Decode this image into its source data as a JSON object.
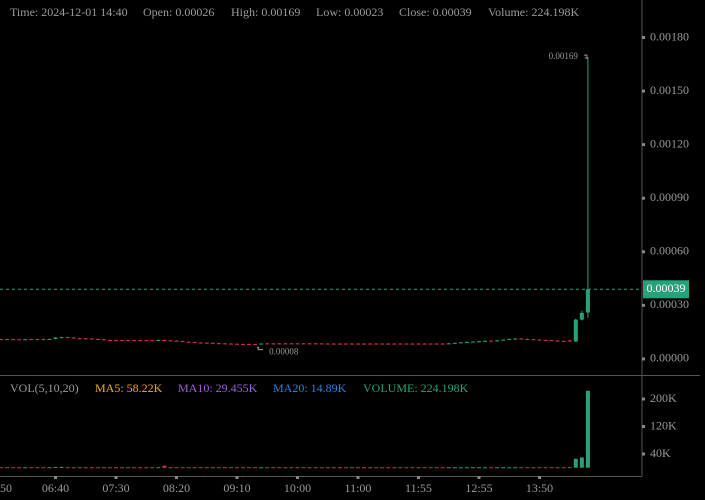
{
  "chart_data": {
    "type": "candlestick",
    "info": [
      {
        "label": "Time:",
        "value": "2024-12-01 14:40"
      },
      {
        "label": "Open:",
        "value": "0.00026"
      },
      {
        "label": "High:",
        "value": "0.00169"
      },
      {
        "label": "Low:",
        "value": "0.00023"
      },
      {
        "label": "Close:",
        "value": "0.00039"
      },
      {
        "label": "Volume:",
        "value": "224.198K"
      }
    ],
    "up_color": "#26a17b",
    "down_color": "#d9304f",
    "ylim": [
      -9e-05,
      0.00201
    ],
    "yticks": [
      {
        "value": 0,
        "label": "0.00000"
      },
      {
        "value": 0.0003,
        "label": "0.00030"
      },
      {
        "value": 0.0006,
        "label": "0.00060"
      },
      {
        "value": 0.0009,
        "label": "0.00090"
      },
      {
        "value": 0.0012,
        "label": "0.00120"
      },
      {
        "value": 0.0015,
        "label": "0.00150"
      },
      {
        "value": 0.0018,
        "label": "0.00180"
      }
    ],
    "last_price": 0.00039,
    "high_marker": 0.00169,
    "low_marker": 8e-05,
    "xticks": [
      "50",
      "06:40",
      "07:30",
      "08:20",
      "09:10",
      "10:00",
      "11:00",
      "11:55",
      "12:55",
      "13:50"
    ],
    "candles": [
      [
        0.000111,
        0.000113,
        0.000108,
        0.00011
      ],
      [
        0.000111,
        0.000113,
        0.000107,
        0.000109
      ],
      [
        0.000111,
        0.000113,
        0.000107,
        0.000109
      ],
      [
        0.000111,
        0.000113,
        0.000107,
        0.000109
      ],
      [
        0.00011,
        0.000112,
        0.000106,
        0.000108
      ],
      [
        0.000108,
        0.000112,
        0.000106,
        0.00011
      ],
      [
        0.000111,
        0.000113,
        0.000107,
        0.000109
      ],
      [
        0.000111,
        0.000113,
        0.000107,
        0.000109
      ],
      [
        0.000111,
        0.000113,
        0.000107,
        0.000109
      ],
      [
        0.00011,
        0.000114,
        0.000108,
        0.000112
      ],
      [
        0.000112,
        0.000122,
        0.00011,
        0.00012
      ],
      [
        0.00012,
        0.000124,
        0.000118,
        0.000122
      ],
      [
        0.000122,
        0.000124,
        0.000118,
        0.00012
      ],
      [
        0.00012,
        0.000122,
        0.000114,
        0.000116
      ],
      [
        0.000116,
        0.000118,
        0.000112,
        0.000114
      ],
      [
        0.000115,
        0.000117,
        0.000111,
        0.000113
      ],
      [
        0.000114,
        0.000116,
        0.00011,
        0.000112
      ],
      [
        0.000112,
        0.000114,
        0.000108,
        0.00011
      ],
      [
        0.00011,
        0.000112,
        0.000104,
        0.000106
      ],
      [
        0.000106,
        0.000108,
        0.000102,
        0.000104
      ],
      [
        0.000105,
        0.000107,
        0.000101,
        0.000103
      ],
      [
        0.000105,
        0.000107,
        0.000101,
        0.000103
      ],
      [
        0.000105,
        0.000107,
        0.000101,
        0.000103
      ],
      [
        0.000105,
        0.000107,
        0.000101,
        0.000103
      ],
      [
        0.000105,
        0.000107,
        0.000101,
        0.000103
      ],
      [
        0.000105,
        0.000107,
        0.000101,
        0.000103
      ],
      [
        0.000105,
        0.000107,
        0.000101,
        0.000103
      ],
      [
        0.000104,
        0.000108,
        0.000102,
        0.000106
      ],
      [
        0.000106,
        0.000108,
        0.000102,
        0.000104
      ],
      [
        0.000104,
        0.000106,
        0.0001,
        0.000102
      ],
      [
        0.000102,
        0.000104,
        9.8e-05,
        0.0001
      ],
      [
        0.0001,
        0.000102,
        9.4e-05,
        9.6e-05
      ],
      [
        9.6e-05,
        9.8e-05,
        9.2e-05,
        9.4e-05
      ],
      [
        9.4e-05,
        9.6e-05,
        9e-05,
        9.2e-05
      ],
      [
        9.2e-05,
        9.4e-05,
        8.8e-05,
        9e-05
      ],
      [
        9.1e-05,
        9.3e-05,
        8.7e-05,
        8.9e-05
      ],
      [
        9e-05,
        9.2e-05,
        8.6e-05,
        8.8e-05
      ],
      [
        8.8e-05,
        9e-05,
        8.4e-05,
        8.6e-05
      ],
      [
        8.7e-05,
        8.9e-05,
        8.3e-05,
        8.5e-05
      ],
      [
        8.6e-05,
        8.8e-05,
        8.2e-05,
        8.4e-05
      ],
      [
        8.5e-05,
        8.7e-05,
        8.1e-05,
        8.3e-05
      ],
      [
        8.4e-05,
        8.6e-05,
        8.1e-05,
        8.3e-05
      ],
      [
        8.4e-05,
        8.5e-05,
        8.1e-05,
        8.2e-05
      ],
      [
        8.3e-05,
        8.4e-05,
        8e-05,
        8.2e-05
      ],
      [
        8.2e-05,
        8.8e-05,
        8.1e-05,
        8.6e-05
      ],
      [
        8.7e-05,
        8.9e-05,
        8.3e-05,
        8.5e-05
      ],
      [
        8.7e-05,
        8.9e-05,
        8.3e-05,
        8.5e-05
      ],
      [
        8.7e-05,
        8.9e-05,
        8.3e-05,
        8.5e-05
      ],
      [
        8.7e-05,
        8.9e-05,
        8.3e-05,
        8.5e-05
      ],
      [
        8.7e-05,
        8.9e-05,
        8.3e-05,
        8.5e-05
      ],
      [
        8.7e-05,
        8.9e-05,
        8.3e-05,
        8.5e-05
      ],
      [
        8.7e-05,
        8.9e-05,
        8.3e-05,
        8.5e-05
      ],
      [
        8.7e-05,
        8.9e-05,
        8.3e-05,
        8.5e-05
      ],
      [
        8.7e-05,
        8.9e-05,
        8.3e-05,
        8.5e-05
      ],
      [
        8.7e-05,
        8.9e-05,
        8.3e-05,
        8.5e-05
      ],
      [
        8.6e-05,
        8.8e-05,
        8.2e-05,
        8.4e-05
      ],
      [
        8.6e-05,
        8.8e-05,
        8.2e-05,
        8.4e-05
      ],
      [
        8.6e-05,
        8.8e-05,
        8.2e-05,
        8.4e-05
      ],
      [
        8.6e-05,
        8.8e-05,
        8.2e-05,
        8.4e-05
      ],
      [
        8.6e-05,
        8.8e-05,
        8.2e-05,
        8.4e-05
      ],
      [
        8.6e-05,
        8.8e-05,
        8.2e-05,
        8.4e-05
      ],
      [
        8.6e-05,
        8.8e-05,
        8.2e-05,
        8.4e-05
      ],
      [
        8.6e-05,
        8.8e-05,
        8.2e-05,
        8.4e-05
      ],
      [
        8.6e-05,
        8.8e-05,
        8.2e-05,
        8.4e-05
      ],
      [
        8.6e-05,
        8.8e-05,
        8.2e-05,
        8.4e-05
      ],
      [
        8.6e-05,
        8.8e-05,
        8.2e-05,
        8.4e-05
      ],
      [
        8.6e-05,
        8.8e-05,
        8.2e-05,
        8.4e-05
      ],
      [
        8.6e-05,
        8.8e-05,
        8.2e-05,
        8.4e-05
      ],
      [
        8.6e-05,
        8.8e-05,
        8.2e-05,
        8.4e-05
      ],
      [
        8.6e-05,
        8.8e-05,
        8.2e-05,
        8.4e-05
      ],
      [
        8.6e-05,
        8.8e-05,
        8.2e-05,
        8.4e-05
      ],
      [
        8.6e-05,
        8.8e-05,
        8.2e-05,
        8.4e-05
      ],
      [
        8.6e-05,
        8.8e-05,
        8.2e-05,
        8.4e-05
      ],
      [
        8.6e-05,
        8.8e-05,
        8.2e-05,
        8.4e-05
      ],
      [
        8.6e-05,
        8.8e-05,
        8.2e-05,
        8.4e-05
      ],
      [
        8.4e-05,
        8.9e-05,
        8.3e-05,
        8.7e-05
      ],
      [
        8.7e-05,
        9.2e-05,
        8.6e-05,
        9e-05
      ],
      [
        9e-05,
        9.5e-05,
        8.9e-05,
        9.3e-05
      ],
      [
        9.3e-05,
        9.7e-05,
        9.1e-05,
        9.5e-05
      ],
      [
        9.5e-05,
        9.9e-05,
        9.3e-05,
        9.7e-05
      ],
      [
        9.7e-05,
        0.000101,
        9.5e-05,
        9.9e-05
      ],
      [
        9.9e-05,
        0.000103,
        9.7e-05,
        0.000101
      ],
      [
        0.000102,
        0.000104,
        9.8e-05,
        0.0001
      ],
      [
        0.0001,
        0.000106,
        9.9e-05,
        0.000104
      ],
      [
        0.000104,
        0.00011,
        0.000103,
        0.000108
      ],
      [
        0.000108,
        0.000114,
        0.000107,
        0.000112
      ],
      [
        0.000112,
        0.000116,
        0.00011,
        0.000114
      ],
      [
        0.000114,
        0.000116,
        0.00011,
        0.000112
      ],
      [
        0.000112,
        0.000114,
        0.000108,
        0.00011
      ],
      [
        0.00011,
        0.000112,
        0.000106,
        0.000108
      ],
      [
        0.000108,
        0.00011,
        0.000104,
        0.000106
      ],
      [
        0.000106,
        0.000108,
        0.000102,
        0.000104
      ],
      [
        0.000105,
        0.000107,
        0.000101,
        0.000103
      ],
      [
        0.000103,
        0.000105,
        9.9e-05,
        0.000101
      ],
      [
        0.000101,
        0.000103,
        9.7e-05,
        9.9e-05
      ],
      [
        0.000104,
        0.000106,
        9.6e-05,
        9.8e-05
      ],
      [
        9.8e-05,
        0.000225,
        9.5e-05,
        0.00022
      ],
      [
        0.00022,
        0.00027,
        0.000215,
        0.000258
      ],
      [
        0.00026,
        0.00169,
        0.00023,
        0.00039
      ]
    ],
    "volume_title": "VOL(5,10,20)",
    "volume_legend": [
      {
        "label": "MA5:",
        "value": "58.22K",
        "color": "#f5a623"
      },
      {
        "label": "MA10:",
        "value": "29.455K",
        "color": "#a15fd6"
      },
      {
        "label": "MA20:",
        "value": "14.89K",
        "color": "#2f7fe0"
      },
      {
        "label": "VOLUME:",
        "value": "224.198K",
        "color": "#26a17b"
      }
    ],
    "volume_ylim": [
      -24000,
      267000
    ],
    "volume_yticks": [
      {
        "value": 40000,
        "label": "40K"
      },
      {
        "value": 120000,
        "label": "120K"
      },
      {
        "value": 200000,
        "label": "200K"
      }
    ],
    "volumes": [
      1500,
      1500,
      1500,
      1500,
      1500,
      1500,
      1500,
      1500,
      1500,
      1500,
      2500,
      2500,
      1500,
      1500,
      1500,
      1500,
      1500,
      1500,
      1500,
      1500,
      1500,
      1500,
      1500,
      1500,
      1500,
      1500,
      1500,
      1500,
      6000,
      1500,
      1500,
      1500,
      1500,
      1500,
      1500,
      1500,
      1500,
      1500,
      1500,
      1500,
      1500,
      1500,
      1500,
      1500,
      1500,
      1500,
      1500,
      1500,
      1500,
      1500,
      1500,
      1500,
      1500,
      1500,
      1500,
      1500,
      1500,
      1500,
      1500,
      1500,
      1500,
      1500,
      1500,
      1500,
      1500,
      1500,
      1500,
      1500,
      1500,
      1500,
      1500,
      1500,
      1500,
      1500,
      1500,
      1500,
      1500,
      1500,
      1500,
      1500,
      1500,
      1500,
      1500,
      1500,
      1500,
      1500,
      1500,
      1500,
      1500,
      1500,
      1500,
      1500,
      1500,
      1500,
      1500,
      2500,
      26000,
      30000,
      224198
    ]
  }
}
